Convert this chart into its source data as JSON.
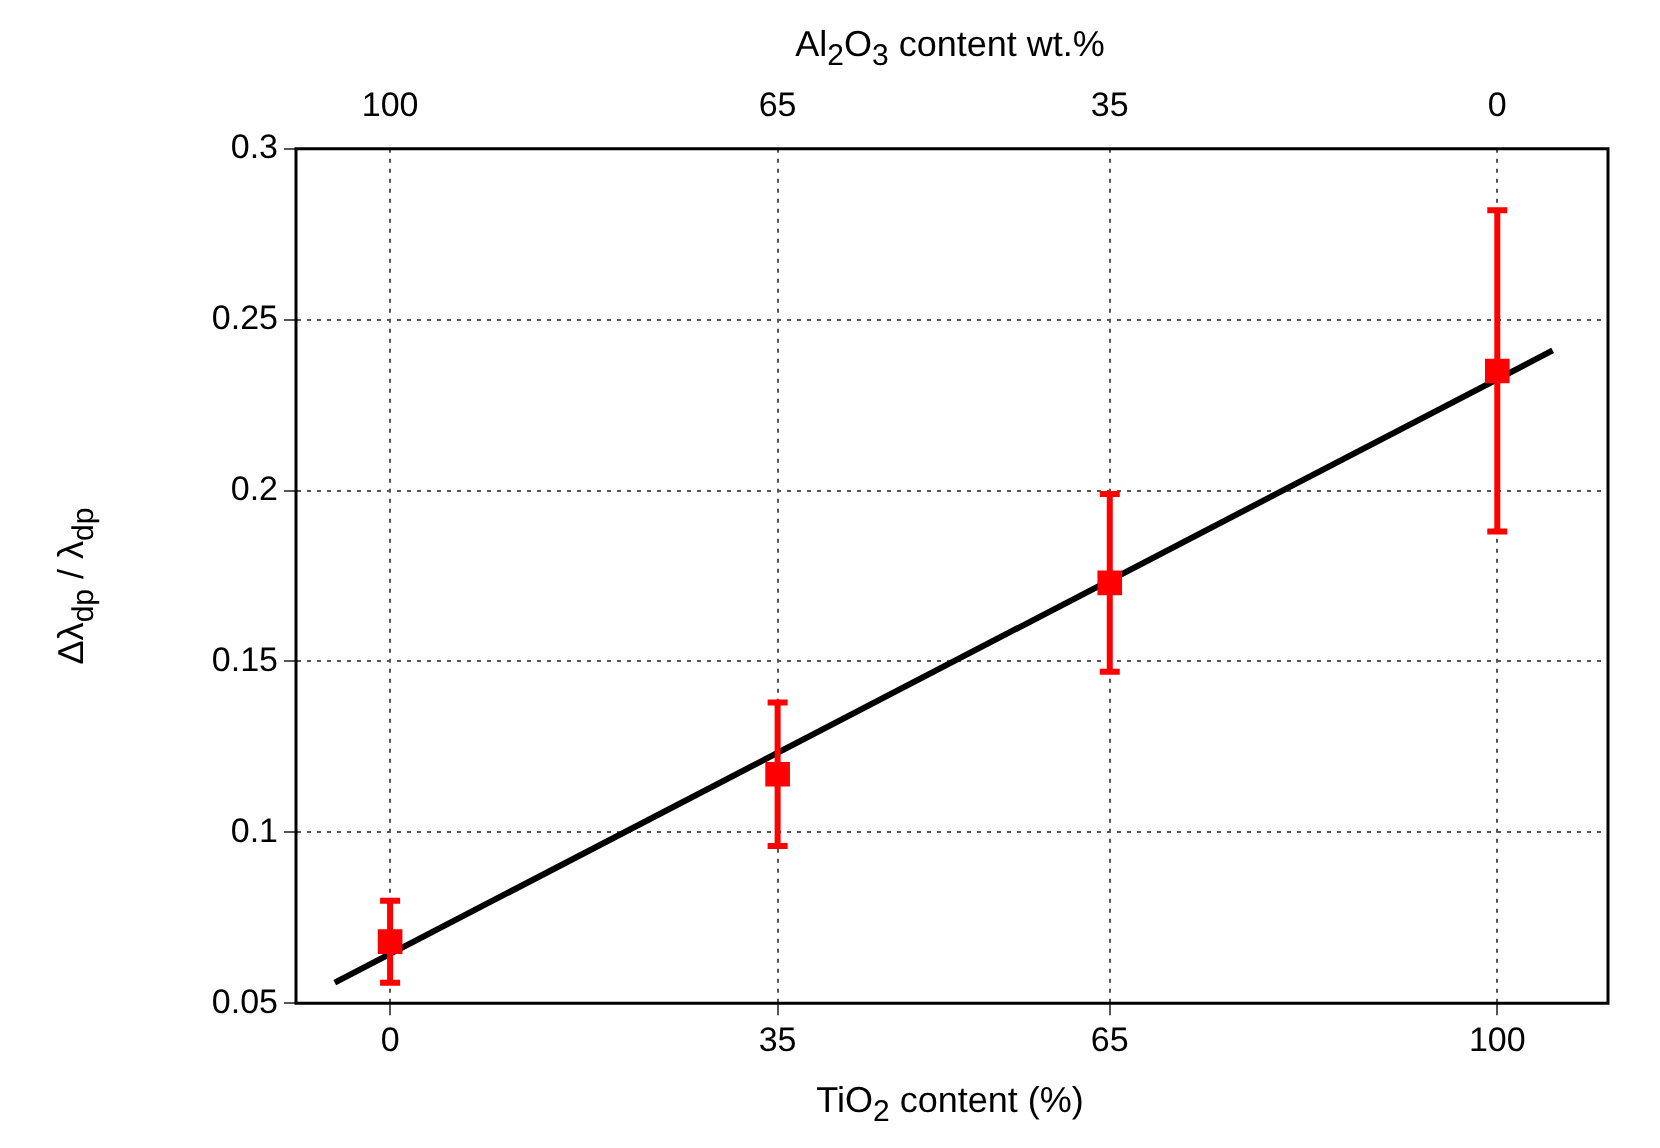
{
  "chart_data": {
    "type": "scatter",
    "xlabel": "TiO$_{2}$ content (%)",
    "ylabel": "Δλ$_{dp}$ / λ$_{dp}$",
    "x2label": "Al$_{2}$O$_{3}$ content wt.%",
    "xlim": [
      -8.5,
      110
    ],
    "xticks": [
      0,
      35,
      65,
      100
    ],
    "x2lim": [
      108.5,
      -10
    ],
    "x2ticks": [
      100,
      65,
      35,
      0
    ],
    "ylim": [
      0.05,
      0.3
    ],
    "yticks": [
      0.05,
      {
        "value": 0.1,
        "label": "0.1"
      },
      0.15,
      {
        "value": 0.2,
        "label": "0.2"
      },
      0.25,
      {
        "value": 0.3,
        "label": "0.3"
      }
    ],
    "grid": true,
    "legend": false,
    "marker": "square",
    "series": [
      {
        "color": "#ff0000",
        "x": [
          0,
          35,
          65,
          100
        ],
        "values": [
          0.068,
          0.117,
          0.173,
          0.235
        ],
        "errors": [
          [
            0.056,
            0.08
          ],
          [
            0.096,
            0.138
          ],
          [
            0.147,
            0.199
          ],
          [
            0.188,
            0.282
          ]
        ]
      },
      {
        "type": "line",
        "color": "#000000",
        "line_style": "solid",
        "marker": "none",
        "x": [
          -5,
          105
        ],
        "values": [
          0.056,
          0.241
        ]
      }
    ]
  }
}
